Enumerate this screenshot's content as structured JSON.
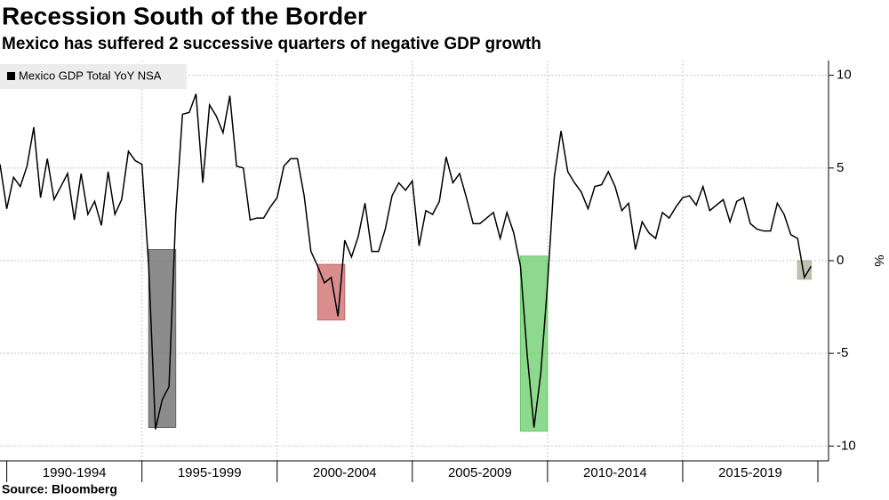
{
  "chart_data": {
    "type": "line",
    "title": "Recession South of the Border",
    "subtitle": "Mexico has suffered 2 successive quarters of negative GDP growth",
    "source": "Source: Bloomberg",
    "y_label": "%",
    "x": [
      1989.75,
      1990,
      1990.25,
      1990.5,
      1990.75,
      1991,
      1991.25,
      1991.5,
      1991.75,
      1992,
      1992.25,
      1992.5,
      1992.75,
      1993,
      1993.25,
      1993.5,
      1993.75,
      1994,
      1994.25,
      1994.5,
      1994.75,
      1995,
      1995.25,
      1995.5,
      1995.75,
      1996,
      1996.25,
      1996.5,
      1996.75,
      1997,
      1997.25,
      1997.5,
      1997.75,
      1998,
      1998.25,
      1998.5,
      1998.75,
      1999,
      1999.25,
      1999.5,
      1999.75,
      2000,
      2000.25,
      2000.5,
      2000.75,
      2001,
      2001.25,
      2001.5,
      2001.75,
      2002,
      2002.25,
      2002.5,
      2002.75,
      2003,
      2003.25,
      2003.5,
      2003.75,
      2004,
      2004.25,
      2004.5,
      2004.75,
      2005,
      2005.25,
      2005.5,
      2005.75,
      2006,
      2006.25,
      2006.5,
      2006.75,
      2007,
      2007.25,
      2007.5,
      2007.75,
      2008,
      2008.25,
      2008.5,
      2008.75,
      2009,
      2009.25,
      2009.5,
      2009.75,
      2010,
      2010.25,
      2010.5,
      2010.75,
      2011,
      2011.25,
      2011.5,
      2011.75,
      2012,
      2012.25,
      2012.5,
      2012.75,
      2013,
      2013.25,
      2013.5,
      2013.75,
      2014,
      2014.25,
      2014.5,
      2014.75,
      2015,
      2015.25,
      2015.5,
      2015.75,
      2016,
      2016.25,
      2016.5,
      2016.75,
      2017,
      2017.25,
      2017.5,
      2017.75,
      2018,
      2018.25,
      2018.5,
      2018.75,
      2019,
      2019.25,
      2019.5,
      2019.75
    ],
    "series": [
      {
        "name": "Mexico GDP Total YoY NSA",
        "color": "#000000",
        "values": [
          5.2,
          2.8,
          4.5,
          4.0,
          5.1,
          7.2,
          3.4,
          5.5,
          3.3,
          4.0,
          4.7,
          2.2,
          4.7,
          2.5,
          3.2,
          1.9,
          4.8,
          2.5,
          3.3,
          5.9,
          5.4,
          5.2,
          -0.3,
          -9.1,
          -7.5,
          -6.8,
          2.5,
          7.9,
          8.0,
          9.0,
          4.2,
          8.4,
          7.8,
          6.9,
          8.9,
          5.1,
          5.0,
          2.2,
          2.3,
          2.3,
          2.9,
          3.4,
          5.1,
          5.5,
          5.5,
          3.5,
          0.5,
          -0.3,
          -1.2,
          -0.9,
          -3.0,
          1.1,
          0.2,
          1.3,
          3.1,
          0.5,
          0.5,
          1.7,
          3.5,
          4.2,
          3.8,
          4.3,
          0.8,
          2.7,
          2.5,
          3.2,
          5.6,
          4.2,
          4.7,
          3.4,
          2.0,
          2.0,
          2.3,
          2.6,
          1.2,
          2.6,
          1.5,
          -0.3,
          -5.1,
          -9.0,
          -6.1,
          -1.3,
          4.5,
          7.0,
          4.8,
          4.2,
          3.7,
          2.8,
          4.0,
          4.1,
          4.8,
          4.0,
          2.7,
          3.1,
          0.6,
          2.1,
          1.5,
          1.2,
          2.6,
          2.3,
          2.9,
          3.4,
          3.5,
          3.0,
          4.0,
          2.7,
          3.0,
          3.3,
          2.1,
          3.2,
          3.4,
          2.0,
          1.7,
          1.6,
          1.6,
          3.1,
          2.5,
          1.4,
          1.2,
          -0.9,
          -0.3
        ]
      }
    ],
    "periods": [
      {
        "label": "1990-1994",
        "start": 1990,
        "end": 1995
      },
      {
        "label": "1995-1999",
        "start": 1995,
        "end": 2000
      },
      {
        "label": "2000-2004",
        "start": 2000,
        "end": 2005
      },
      {
        "label": "2005-2009",
        "start": 2005,
        "end": 2010
      },
      {
        "label": "2010-2014",
        "start": 2010,
        "end": 2015
      },
      {
        "label": "2015-2019",
        "start": 2015,
        "end": 2020
      }
    ],
    "highlights": [
      {
        "x": [
          1995.25,
          1996.25
        ],
        "y": [
          -9.0,
          0.6
        ],
        "color": "#7f7f7f"
      },
      {
        "x": [
          2001.5,
          2002.5
        ],
        "y": [
          -3.2,
          -0.2
        ],
        "color": "#ff8080"
      },
      {
        "x": [
          2009,
          2010
        ],
        "y": [
          -9.2,
          0.25
        ],
        "color": "#80ff80"
      },
      {
        "x": [
          2019.25,
          2019.75
        ],
        "y": [
          -1.0,
          0
        ],
        "color": "#d8d8bc"
      }
    ],
    "xlim": [
      1989.75,
      2020
    ],
    "ylim": [
      -10.8,
      10.8
    ],
    "yticks": [
      10,
      5,
      0,
      -5,
      -10
    ],
    "grid": true
  }
}
